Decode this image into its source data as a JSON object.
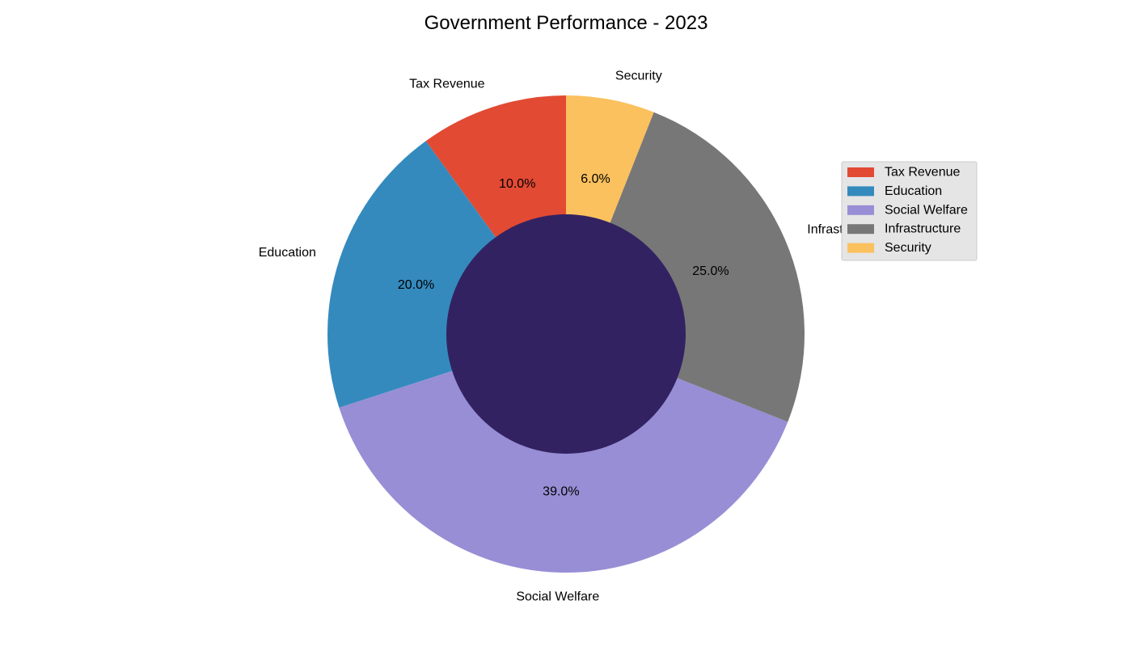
{
  "chart_data": {
    "type": "pie",
    "title": "Government Performance - 2023",
    "categories": [
      "Tax Revenue",
      "Education",
      "Social Welfare",
      "Infrastructure",
      "Security"
    ],
    "values": [
      10.0,
      20.0,
      39.0,
      25.0,
      6.0
    ],
    "value_labels": [
      "10.0%",
      "20.0%",
      "39.0%",
      "25.0%",
      "6.0%"
    ],
    "colors": [
      "#E24A33",
      "#348ABD",
      "#988ED5",
      "#777777",
      "#FBC15E"
    ],
    "hole_color": "#332262",
    "direction": "counterclockwise",
    "start_angle_deg": 90,
    "legend": {
      "placement": "right",
      "entries": [
        "Tax Revenue",
        "Education",
        "Social Welfare",
        "Infrastructure",
        "Security"
      ]
    }
  }
}
